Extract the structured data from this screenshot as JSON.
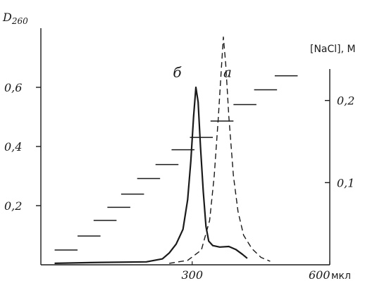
{
  "chart_data": {
    "type": "line",
    "title": "",
    "y_left_label": "D",
    "y_left_label_sub": "260",
    "y_right_label": "[NaCl], M",
    "x_unit_label": "мкл",
    "xlim": [
      -30,
      600
    ],
    "ylim_left": [
      0,
      0.8
    ],
    "ylim_right": [
      0,
      0.288
    ],
    "x_ticks": [
      {
        "value": 300,
        "label": "300"
      },
      {
        "value": 600,
        "label": "600"
      }
    ],
    "y_left_ticks": [
      {
        "value": 0.2,
        "label": "0,2"
      },
      {
        "value": 0.4,
        "label": "0,4"
      },
      {
        "value": 0.6,
        "label": "0,6"
      }
    ],
    "y_right_ticks": [
      {
        "value": 0.1,
        "label": "0,1"
      },
      {
        "value": 0.2,
        "label": "0,2"
      }
    ],
    "series": [
      {
        "name": "б",
        "style": "solid",
        "color": "#1a1a1a",
        "label_at": {
          "x": 258,
          "y": 0.635
        },
        "points": [
          [
            0,
            0.005
          ],
          [
            100,
            0.008
          ],
          [
            200,
            0.01
          ],
          [
            235,
            0.02
          ],
          [
            250,
            0.04
          ],
          [
            265,
            0.07
          ],
          [
            280,
            0.12
          ],
          [
            290,
            0.22
          ],
          [
            297,
            0.35
          ],
          [
            303,
            0.5
          ],
          [
            308,
            0.6
          ],
          [
            313,
            0.55
          ],
          [
            318,
            0.4
          ],
          [
            324,
            0.25
          ],
          [
            330,
            0.13
          ],
          [
            336,
            0.08
          ],
          [
            345,
            0.065
          ],
          [
            360,
            0.06
          ],
          [
            380,
            0.062
          ],
          [
            395,
            0.052
          ],
          [
            410,
            0.035
          ],
          [
            420,
            0.022
          ]
        ]
      },
      {
        "name": "a",
        "style": "dashed",
        "color": "#1a1a1a",
        "label_at": {
          "x": 368,
          "y": 0.635
        },
        "points": [
          [
            250,
            0.005
          ],
          [
            290,
            0.015
          ],
          [
            320,
            0.05
          ],
          [
            338,
            0.15
          ],
          [
            348,
            0.3
          ],
          [
            357,
            0.5
          ],
          [
            363,
            0.65
          ],
          [
            368,
            0.77
          ],
          [
            373,
            0.68
          ],
          [
            380,
            0.5
          ],
          [
            390,
            0.3
          ],
          [
            400,
            0.18
          ],
          [
            412,
            0.1
          ],
          [
            430,
            0.055
          ],
          [
            450,
            0.025
          ],
          [
            470,
            0.012
          ]
        ]
      },
      {
        "name": "[NaCl]",
        "style": "steps",
        "axis": "right",
        "color": "#1a1a1a",
        "step_width": 50,
        "steps": [
          [
            25,
            0.018
          ],
          [
            75,
            0.035
          ],
          [
            110,
            0.054
          ],
          [
            140,
            0.07
          ],
          [
            170,
            0.086
          ],
          [
            205,
            0.105
          ],
          [
            245,
            0.122
          ],
          [
            280,
            0.14
          ],
          [
            320,
            0.155
          ],
          [
            365,
            0.175
          ],
          [
            415,
            0.195
          ],
          [
            460,
            0.213
          ],
          [
            505,
            0.23
          ]
        ]
      }
    ]
  }
}
